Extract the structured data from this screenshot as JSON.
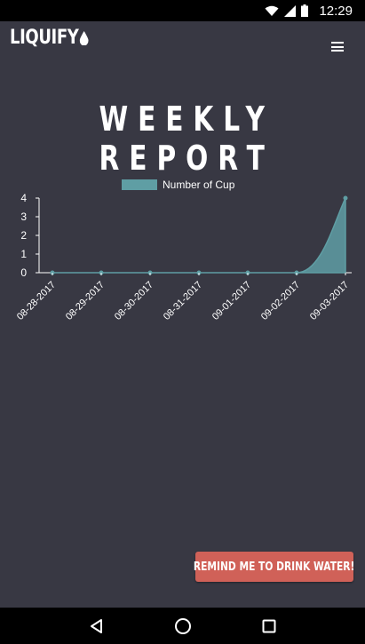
{
  "status_bar": {
    "time": "12:29",
    "icons": [
      "wifi-icon",
      "signal-icon",
      "battery-icon"
    ]
  },
  "header": {
    "logo_text": "LIQUIFY",
    "menu_icon": "hamburger-menu-icon"
  },
  "page": {
    "title": "WEEKLY REPORT"
  },
  "chart_data": {
    "type": "area",
    "title": "",
    "xlabel": "",
    "ylabel": "",
    "legend_position": "top-center",
    "x": [
      "08-28-2017",
      "08-29-2017",
      "08-30-2017",
      "08-31-2017",
      "09-01-2017",
      "09-02-2017",
      "09-03-2017"
    ],
    "series": [
      {
        "name": "Number of Cup",
        "values": [
          0,
          0,
          0,
          0,
          0,
          0,
          4
        ],
        "color": "#5f9ea4"
      }
    ],
    "ylim": [
      0,
      4
    ],
    "yticks": [
      0,
      1,
      2,
      3,
      4
    ],
    "grid": false
  },
  "actions": {
    "remind_label": "REMIND ME TO DRINK WATER!"
  },
  "nav_bar": {
    "icons": [
      "back-icon",
      "home-icon",
      "recents-icon"
    ]
  },
  "colors": {
    "background": "#383843",
    "accent": "#d06158",
    "series": "#5f9ea4"
  }
}
